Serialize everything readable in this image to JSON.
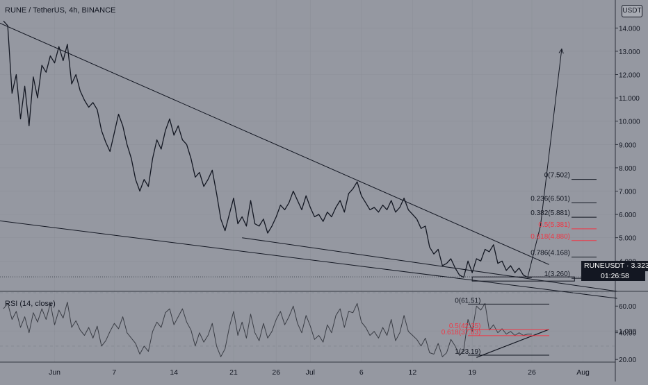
{
  "chart_title": "RUNE / TetherUS, 4h, BINANCE",
  "currency_button": "USDT",
  "ticker_label": "RUNEUSDT",
  "last_price": "3.323",
  "ticker_text": "RUNEUSDT · 3.323",
  "countdown": "01:26:58",
  "rsi_title": "RSI (14, close)",
  "colors": {
    "background": "#9598a1",
    "line": "#131722",
    "fib_red": "#f23645",
    "tag_bg": "#131722"
  },
  "chart_data": [
    {
      "type": "line",
      "title": "RUNE / TetherUS, 4h, BINANCE",
      "x_ticks": [
        {
          "label": "Jun",
          "t": 6
        },
        {
          "label": "7",
          "t": 13
        },
        {
          "label": "14",
          "t": 20
        },
        {
          "label": "21",
          "t": 27
        },
        {
          "label": "26",
          "t": 32
        },
        {
          "label": "Jul",
          "t": 36
        },
        {
          "label": "6",
          "t": 42
        },
        {
          "label": "12",
          "t": 48
        },
        {
          "label": "19",
          "t": 55
        },
        {
          "label": "26",
          "t": 62
        },
        {
          "label": "Aug",
          "t": 68
        }
      ],
      "y_axis_ticks": [
        1,
        14,
        13,
        12,
        11,
        10,
        9,
        8,
        7,
        6,
        5,
        4
      ],
      "ylim": [
        2.7,
        15.2
      ],
      "series": [
        {
          "x": [
            0,
            0.5,
            1,
            1.5,
            2,
            2.5,
            3,
            3.5,
            4,
            4.5,
            5,
            5.5,
            6,
            6.5,
            7,
            7.5,
            8,
            8.5,
            9,
            9.5,
            10,
            10.5,
            11,
            11.5,
            12,
            12.5,
            13,
            13.5,
            14,
            14.5,
            15,
            15.5,
            16,
            16.5,
            17,
            17.5,
            18,
            18.5,
            19,
            19.5,
            20,
            20.5,
            21,
            21.5,
            22,
            22.5,
            23,
            23.5,
            24,
            24.5,
            25,
            25.5,
            26,
            26.5,
            27,
            27.5,
            28,
            28.5,
            29,
            29.5,
            30,
            30.5,
            31,
            31.5,
            32,
            32.5,
            33,
            33.5,
            34,
            34.5,
            35,
            35.5,
            36,
            36.5,
            37,
            37.5,
            38,
            38.5,
            39,
            39.5,
            40,
            40.5,
            41,
            41.5,
            42,
            42.5,
            43,
            43.5,
            44,
            44.5,
            45,
            45.5,
            46,
            46.5,
            47,
            47.5,
            48,
            48.5,
            49,
            49.5,
            50,
            50.5,
            51,
            51.5,
            52,
            52.5,
            53,
            53.5,
            54,
            54.5,
            55,
            55.5,
            56,
            56.5,
            57,
            57.5,
            58,
            58.5,
            59,
            59.5,
            60,
            60.5,
            61,
            61.5,
            62
          ],
          "values": [
            14.3,
            14.1,
            11.2,
            12.0,
            10.1,
            11.5,
            9.8,
            11.9,
            11.0,
            12.4,
            12.1,
            12.8,
            12.5,
            13.2,
            12.6,
            13.3,
            11.6,
            12.0,
            11.3,
            10.9,
            10.6,
            10.8,
            10.5,
            9.6,
            9.1,
            8.7,
            9.5,
            10.3,
            9.8,
            9.0,
            8.4,
            7.5,
            7.0,
            7.5,
            7.2,
            8.4,
            9.2,
            8.8,
            9.6,
            10.1,
            9.4,
            9.8,
            9.2,
            9.0,
            8.4,
            7.6,
            7.8,
            7.2,
            7.5,
            7.9,
            6.9,
            5.8,
            5.3,
            6.0,
            6.7,
            5.6,
            5.9,
            5.5,
            6.6,
            5.6,
            5.5,
            5.8,
            5.2,
            5.5,
            5.9,
            6.4,
            6.2,
            6.5,
            7.0,
            6.6,
            6.2,
            6.8,
            6.3,
            5.9,
            6.0,
            5.7,
            6.1,
            5.9,
            6.3,
            6.6,
            6.1,
            6.9,
            7.1,
            7.4,
            6.8,
            6.5,
            6.2,
            6.3,
            6.1,
            6.4,
            6.2,
            6.6,
            6.1,
            6.3,
            6.7,
            6.2,
            6.0,
            5.8,
            5.4,
            5.5,
            4.6,
            4.3,
            4.5,
            3.8,
            3.9,
            4.1,
            3.7,
            3.4,
            3.3,
            4.0,
            3.5,
            4.1,
            4.0,
            4.5,
            4.4,
            4.7,
            3.9,
            4.0,
            3.6,
            3.8,
            3.5,
            3.7,
            3.4,
            3.3,
            3.3
          ]
        }
      ],
      "fib_levels": [
        {
          "label": "0(7.502)",
          "value": 7.502,
          "color": "#131722"
        },
        {
          "label": "0.236(6.501)",
          "value": 6.501,
          "color": "#131722"
        },
        {
          "label": "0.382(5.881)",
          "value": 5.881,
          "color": "#131722"
        },
        {
          "label": "0.5(5.381)",
          "value": 5.381,
          "color": "#f23645"
        },
        {
          "label": "0.618(4.880)",
          "value": 4.88,
          "color": "#f23645"
        },
        {
          "label": "0.786(4.168)",
          "value": 4.168,
          "color": "#131722"
        },
        {
          "label": "1(3.260)",
          "value": 3.26,
          "color": "#131722"
        }
      ],
      "trendlines": [
        {
          "t1": -1,
          "v1": 14.3,
          "t2": 64,
          "v2": 3.85
        },
        {
          "t1": 28,
          "v1": 5.0,
          "t2": 72,
          "v2": 2.7
        },
        {
          "t1": -1,
          "v1": 5.75,
          "t2": 72,
          "v2": 2.4
        }
      ],
      "projection": [
        [
          61.5,
          3.3
        ],
        [
          63,
          5.5
        ],
        [
          65.5,
          13.1
        ]
      ],
      "last_price": 3.323
    },
    {
      "type": "line",
      "title": "RSI (14, close)",
      "y_axis_ticks": [
        60,
        40,
        20
      ],
      "ylim": [
        18,
        70
      ],
      "series": [
        {
          "x": [
            0,
            0.5,
            1,
            1.5,
            2,
            2.5,
            3,
            3.5,
            4,
            4.5,
            5,
            5.5,
            6,
            6.5,
            7,
            7.5,
            8,
            8.5,
            9,
            9.5,
            10,
            10.5,
            11,
            11.5,
            12,
            12.5,
            13,
            13.5,
            14,
            14.5,
            15,
            15.5,
            16,
            16.5,
            17,
            17.5,
            18,
            18.5,
            19,
            19.5,
            20,
            20.5,
            21,
            21.5,
            22,
            22.5,
            23,
            23.5,
            24,
            24.5,
            25,
            25.5,
            26,
            26.5,
            27,
            27.5,
            28,
            28.5,
            29,
            29.5,
            30,
            30.5,
            31,
            31.5,
            32,
            32.5,
            33,
            33.5,
            34,
            34.5,
            35,
            35.5,
            36,
            36.5,
            37,
            37.5,
            38,
            38.5,
            39,
            39.5,
            40,
            40.5,
            41,
            41.5,
            42,
            42.5,
            43,
            43.5,
            44,
            44.5,
            45,
            45.5,
            46,
            46.5,
            47,
            47.5,
            48,
            48.5,
            49,
            49.5,
            50,
            50.5,
            51,
            51.5,
            52,
            52.5,
            53,
            53.5,
            54,
            54.5,
            55,
            55.5,
            56,
            56.5,
            57,
            57.5,
            58,
            58.5,
            59,
            59.5,
            60,
            60.5,
            61,
            61.5,
            62
          ],
          "values": [
            58,
            62,
            50,
            56,
            44,
            52,
            40,
            55,
            48,
            58,
            50,
            62,
            46,
            57,
            51,
            63,
            44,
            49,
            42,
            38,
            44,
            36,
            45,
            30,
            34,
            41,
            47,
            43,
            52,
            40,
            36,
            32,
            24,
            30,
            26,
            41,
            48,
            44,
            55,
            58,
            46,
            52,
            58,
            48,
            42,
            30,
            40,
            33,
            38,
            47,
            30,
            22,
            28,
            44,
            56,
            38,
            48,
            36,
            54,
            40,
            34,
            47,
            36,
            41,
            50,
            56,
            46,
            52,
            60,
            47,
            40,
            53,
            45,
            35,
            38,
            33,
            46,
            40,
            53,
            58,
            44,
            56,
            55,
            62,
            48,
            44,
            38,
            41,
            36,
            44,
            38,
            50,
            34,
            40,
            53,
            41,
            38,
            35,
            30,
            36,
            25,
            24,
            32,
            22,
            25,
            35,
            30,
            23,
            27,
            50,
            41,
            60,
            57,
            62,
            42,
            46,
            40,
            43,
            39,
            41,
            38,
            40,
            38,
            39,
            39
          ]
        }
      ],
      "fib_levels": [
        {
          "label": "0(61.51)",
          "value": 61.51,
          "color": "#131722"
        },
        {
          "label": "0.5(42.35)",
          "value": 42.35,
          "color": "#f23645"
        },
        {
          "label": "0.618(37.83)",
          "value": 37.83,
          "color": "#f23645"
        },
        {
          "label": "1(23.19)",
          "value": 23.19,
          "color": "#131722"
        }
      ],
      "trendline": {
        "t1": 55.5,
        "v1": 21.5,
        "t2": 64,
        "v2": 42.5
      }
    }
  ]
}
